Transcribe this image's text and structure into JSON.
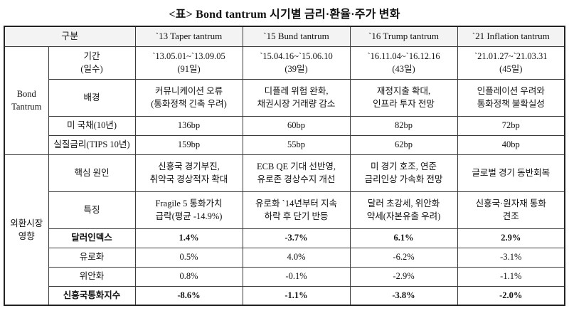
{
  "title": "<표> Bond tantrum 시기별 금리·환율·주가 변화",
  "header": {
    "gubun": "구분",
    "cols": [
      "`13 Taper tantrum",
      "`15 Bund tantrum",
      "`16 Trump tantrum",
      "`21 Inflation tantrum"
    ]
  },
  "groups": {
    "bond": "Bond\nTantrum",
    "fx": "외환시장\n영향"
  },
  "rows": [
    {
      "label": "기간\n(일수)",
      "cells": [
        "`13.05.01~`13.09.05\n(91일)",
        "`15.04.16~`15.06.10\n(39일)",
        "`16.11.04~`16.12.16\n(43일)",
        "`21.01.27~`21.03.31\n(45일)"
      ]
    },
    {
      "label": "배경",
      "cells": [
        "커뮤니케이션 오류\n(통화정책 긴축 우려)",
        "디플레 위험 완화,\n채권시장 거래량 감소",
        "재정지출 확대,\n인프라 투자 전망",
        "인플레이션 우려와\n통화정책 불확실성"
      ]
    },
    {
      "label": "미 국채(10년)",
      "cells": [
        "136bp",
        "60bp",
        "82bp",
        "72bp"
      ]
    },
    {
      "label": "실질금리(TIPS 10년)",
      "cells": [
        "159bp",
        "55bp",
        "62bp",
        "40bp"
      ]
    },
    {
      "label": "핵심 원인",
      "cells": [
        "신흥국 경기부진,\n취약국 경상적자 확대",
        "ECB QE 기대 선반영,\n유로존 경상수지 개선",
        "미 경기 호조, 연준\n금리인상 가속화 전망",
        "글로벌 경기 동반회복"
      ]
    },
    {
      "label": "특징",
      "cells": [
        "Fragile 5 통화가치\n급락(평균 -14.9%)",
        "유로화 `14년부터 지속\n하락 후 단기 반등",
        "달러 초강세, 위안화\n약세(자본유출 우려)",
        "신흥국·원자재 통화\n견조"
      ]
    },
    {
      "label": "달러인덱스",
      "cells": [
        "1.4%",
        "-3.7%",
        "6.1%",
        "2.9%"
      ]
    },
    {
      "label": "유로화",
      "cells": [
        "0.5%",
        "4.0%",
        "-6.2%",
        "-3.1%"
      ]
    },
    {
      "label": "위안화",
      "cells": [
        "0.8%",
        "-0.1%",
        "-2.9%",
        "-1.1%"
      ]
    },
    {
      "label": "신흥국통화지수",
      "cells": [
        "-8.6%",
        "-1.1%",
        "-3.8%",
        "-2.0%"
      ]
    }
  ]
}
